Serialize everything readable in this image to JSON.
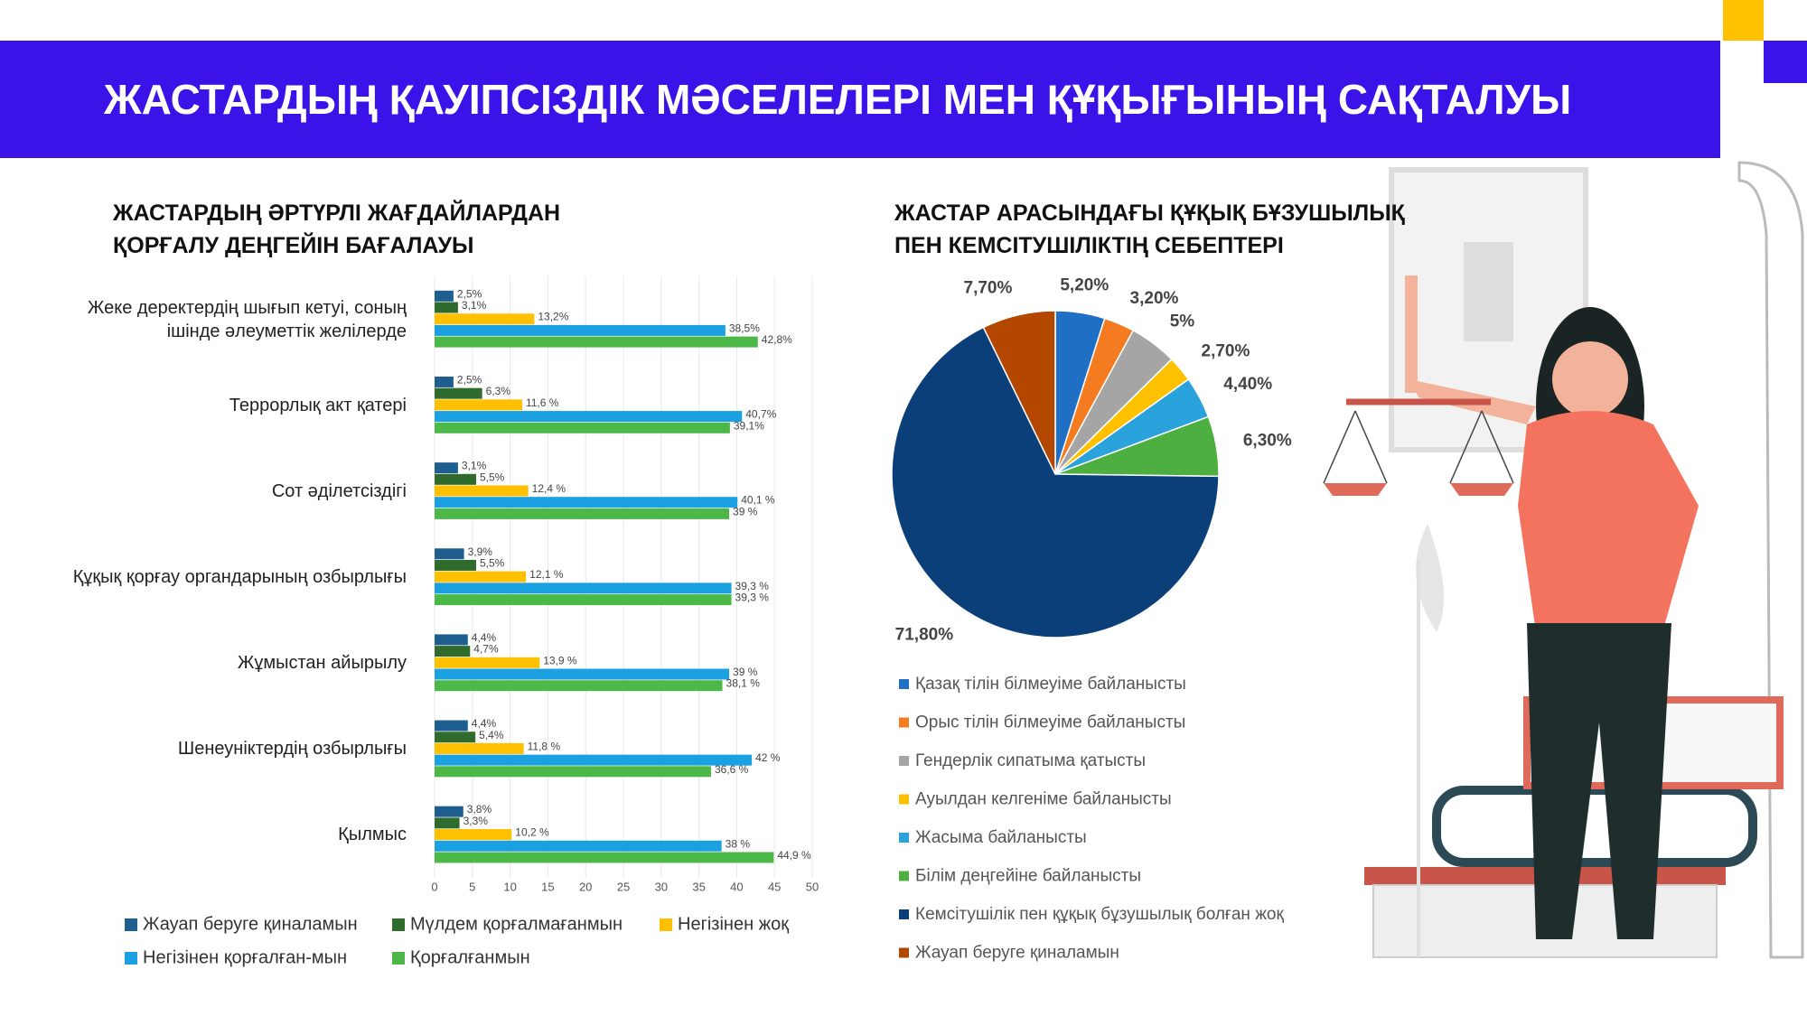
{
  "title": "ЖАСТАРДЫҢ ҚАУІПСІЗДІК МӘСЕЛЕЛЕРІ МЕН ҚҰҚЫҒЫНЫҢ САҚТАЛУЫ",
  "chart_data": [
    {
      "type": "hbar",
      "title": "ЖАСТАРДЫҢ ӘРТҮРЛІ ЖАҒДАЙЛАРДАН ҚОРҒАЛУ ДЕҢГЕЙІН БАҒАЛАУЫ",
      "categories": [
        "Жеке деректердің шығып кетуі, соның ішінде әлеуметтік желілерде",
        "Террорлық акт қатері",
        "Сот әділетсіздігі",
        "Құқық қорғау органдарының озбырлығы",
        "Жұмыстан айырылу",
        "Шенеуніктердің озбырлығы",
        "Қылмыс"
      ],
      "series": [
        {
          "name": "Жауап беруге қиналамын",
          "color": "#1f5f8f",
          "values": [
            2.5,
            2.5,
            3.1,
            3.9,
            4.4,
            4.4,
            3.8
          ],
          "value_labels": [
            "2,5%",
            "2,5%",
            "3,1%",
            "3,9%",
            "4,4%",
            "4,4%",
            "3,8%"
          ]
        },
        {
          "name": "Мүлдем қорғалмағанмын",
          "color": "#2f6b2c",
          "values": [
            3.1,
            6.3,
            5.5,
            5.5,
            4.7,
            5.4,
            3.3
          ],
          "value_labels": [
            "3,1%",
            "6,3%",
            "5,5%",
            "5,5%",
            "4,7%",
            "5,4%",
            "3,3%"
          ]
        },
        {
          "name": "Негізінен жоқ",
          "color": "#ffc000",
          "values": [
            13.2,
            11.6,
            12.4,
            12.1,
            13.9,
            11.8,
            10.2
          ],
          "value_labels": [
            "13,2%",
            "11,6 %",
            "12,4 %",
            "12,1 %",
            "13,9 %",
            "11,8 %",
            "10,2 %"
          ]
        },
        {
          "name": "Негізінен қорғалған-мын",
          "color": "#1ba1e2",
          "values": [
            38.5,
            40.7,
            40.1,
            39.3,
            39,
            42,
            38
          ],
          "value_labels": [
            "38,5%",
            "40,7%",
            "40,1 %",
            "39,3 %",
            "39 %",
            "42 %",
            "38 %"
          ]
        },
        {
          "name": "Қорғалғанмын",
          "color": "#4cb848",
          "values": [
            42.8,
            39.1,
            39,
            39.3,
            38.1,
            36.6,
            44.9
          ],
          "value_labels": [
            "42,8%",
            "39,1%",
            "39 %",
            "39,3 %",
            "38,1 %",
            "36,6 %",
            "44,9 %"
          ]
        }
      ],
      "xlim": [
        0,
        50
      ],
      "xticks": [
        0,
        5,
        10,
        15,
        20,
        25,
        30,
        35,
        40,
        45,
        50
      ],
      "grid": true
    },
    {
      "type": "pie",
      "title": "ЖАСТАР АРАСЫНДАҒЫ ҚҰҚЫҚ БҰЗУШЫЛЫҚ ПЕН КЕМСІТУШІЛІКТІҢ СЕБЕПТЕРІ",
      "categories": [
        "Қазақ тілін білмеуіме байланысты",
        "Орыс тілін білмеуіме байланысты",
        "Гендерлік сипатыма қатысты",
        "Ауылдан келгеніме байланысты",
        "Жасыма байланысты",
        "Білім деңгейіне байланысты",
        "Кемсітушілік пен құқық бұзушылық болған жоқ",
        "Жауап беруге қиналамын"
      ],
      "values": [
        5.2,
        3.2,
        5,
        2.7,
        4.4,
        6.3,
        71.8,
        7.7
      ],
      "value_labels": [
        "5,20%",
        "3,20%",
        "5%",
        "2,70%",
        "4,40%",
        "6,30%",
        "71,80%",
        "7,70%"
      ],
      "colors": [
        "#1f6fc5",
        "#f47b20",
        "#a5a5a5",
        "#ffc000",
        "#2aa2dc",
        "#4caf3f",
        "#0b3f7a",
        "#b34700"
      ]
    }
  ]
}
